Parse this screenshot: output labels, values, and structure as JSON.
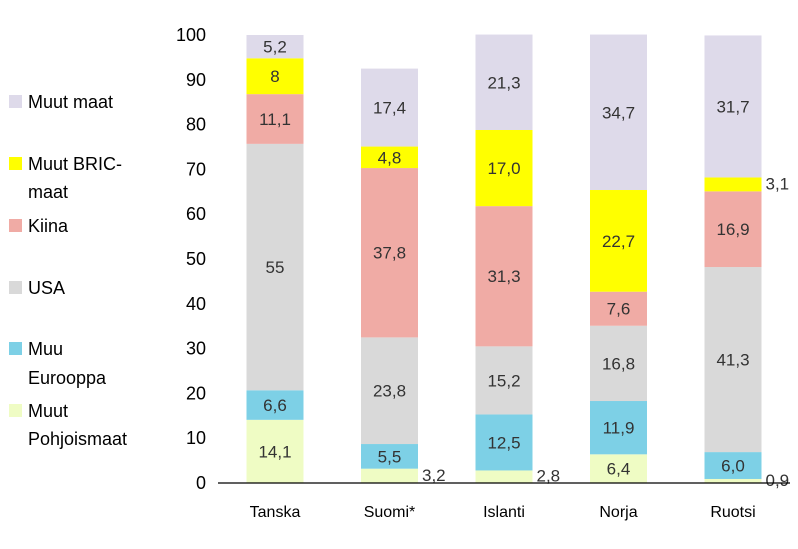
{
  "chart_data": {
    "type": "bar",
    "stacked": true,
    "title": "",
    "xlabel": "",
    "ylabel": "",
    "ylim": [
      0,
      100
    ],
    "yticks": [
      "0",
      "10",
      "20",
      "30",
      "40",
      "50",
      "60",
      "70",
      "80",
      "90",
      "100"
    ],
    "grid": false,
    "legend_position": "left",
    "categories": [
      "Tanska",
      "Suomi*",
      "Islanti",
      "Norja",
      "Ruotsi"
    ],
    "series": [
      {
        "name": "Muut Pohjoismaat",
        "legend_lines": [
          "Muut",
          "Pohjoismaat"
        ],
        "color": "#effcc4",
        "values": [
          14.1,
          3.2,
          2.8,
          6.4,
          0.9
        ],
        "labels": [
          "14,1",
          "3,2",
          "2,8",
          "6,4",
          "0,9"
        ]
      },
      {
        "name": "Muu Eurooppa",
        "legend_lines": [
          "Muu",
          "Eurooppa"
        ],
        "color": "#7dd0e6",
        "values": [
          6.6,
          5.5,
          12.5,
          11.9,
          6.0
        ],
        "labels": [
          "6,6",
          "5,5",
          "12,5",
          "11,9",
          "6,0"
        ]
      },
      {
        "name": "USA",
        "legend_lines": [
          "USA"
        ],
        "color": "#d9d9d9",
        "values": [
          55,
          23.8,
          15.2,
          16.8,
          41.3
        ],
        "labels": [
          "55",
          "23,8",
          "15,2",
          "16,8",
          "41,3"
        ]
      },
      {
        "name": "Kiina",
        "legend_lines": [
          "Kiina"
        ],
        "color": "#f0aba5",
        "values": [
          11.1,
          37.8,
          31.3,
          7.6,
          16.9
        ],
        "labels": [
          "11,1",
          "37,8",
          "31,3",
          "7,6",
          "16,9"
        ]
      },
      {
        "name": "Muut BRIC-maat",
        "legend_lines": [
          "Muut BRIC-",
          "maat"
        ],
        "color": "#ffff00",
        "values": [
          8,
          4.8,
          17.0,
          22.7,
          3.1
        ],
        "labels": [
          "8",
          "4,8",
          "17,0",
          "22,7",
          "3,1"
        ]
      },
      {
        "name": "Muut maat",
        "legend_lines": [
          "Muut maat"
        ],
        "color": "#dedaea",
        "values": [
          5.2,
          17.4,
          21.3,
          34.7,
          31.7
        ],
        "labels": [
          "5,2",
          "17,4",
          "21,3",
          "34,7",
          "31,7"
        ]
      }
    ]
  }
}
